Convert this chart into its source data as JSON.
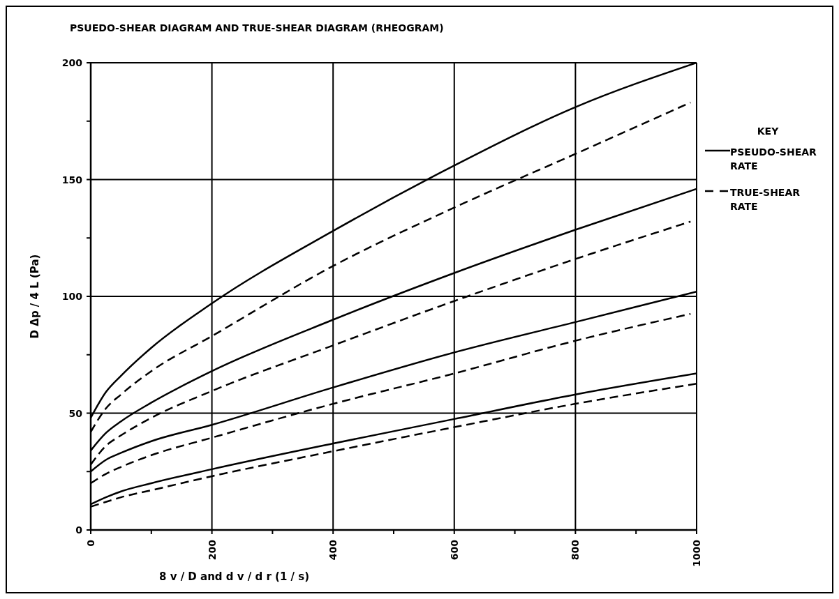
{
  "chart_data": {
    "type": "line",
    "title": "PSUEDO-SHEAR DIAGRAM AND TRUE-SHEAR DIAGRAM (RHEOGRAM)",
    "xlabel": "8 v / D  and  d v / d r  (1 / s)",
    "ylabel": "D Δp / 4 L  (Pa)",
    "legend_title": "KEY",
    "legend": "right",
    "grid": true,
    "marker": "none",
    "xlim": [
      0,
      1000
    ],
    "xticks": [
      0,
      {
        "value": 100,
        "label": null
      },
      200,
      {
        "value": 300,
        "label": null
      },
      400,
      {
        "value": 500,
        "label": null
      },
      600,
      {
        "value": 700,
        "label": null
      },
      800,
      {
        "value": 900,
        "label": null
      },
      1000
    ],
    "ylim": [
      0,
      200
    ],
    "yticks": [
      0,
      {
        "value": 25,
        "label": null
      },
      50,
      {
        "value": 75,
        "label": null
      },
      100,
      {
        "value": 125,
        "label": null
      },
      150,
      {
        "value": 175,
        "label": null
      },
      200
    ],
    "series": [
      {
        "name": "PSEUDO-SHEAR RATE",
        "color": "#000000",
        "line_style": "solid",
        "x": [
          0,
          25,
          50,
          100,
          200,
          400,
          600,
          800,
          1000
        ],
        "values": [
          48,
          59,
          66,
          78,
          97,
          128,
          156,
          181,
          200
        ]
      },
      {
        "color": "#000000",
        "line_style": "dashed",
        "x": [
          0,
          25,
          50,
          100,
          200,
          400,
          600,
          800,
          990
        ],
        "values": [
          42,
          52,
          58,
          68,
          83,
          113,
          138,
          161,
          183
        ]
      },
      {
        "color": "#000000",
        "line_style": "solid",
        "x": [
          0,
          25,
          50,
          100,
          200,
          400,
          600,
          800,
          1000
        ],
        "values": [
          34,
          41.5,
          46.5,
          54.5,
          68,
          90,
          110,
          128.5,
          146
        ]
      },
      {
        "color": "#000000",
        "line_style": "dashed",
        "x": [
          0,
          25,
          50,
          100,
          200,
          400,
          600,
          800,
          990
        ],
        "values": [
          28,
          36,
          40.5,
          48,
          59.5,
          79,
          98,
          116,
          132
        ]
      },
      {
        "color": "#000000",
        "line_style": "solid",
        "x": [
          0,
          25,
          50,
          100,
          200,
          400,
          600,
          800,
          1000
        ],
        "values": [
          25,
          30,
          33,
          38,
          45,
          61,
          76,
          89,
          102
        ]
      },
      {
        "color": "#000000",
        "line_style": "dashed",
        "x": [
          0,
          25,
          50,
          100,
          200,
          400,
          600,
          800,
          990
        ],
        "values": [
          20,
          24,
          27,
          32,
          39.5,
          54,
          67,
          81,
          92.5
        ]
      },
      {
        "color": "#000000",
        "line_style": "solid",
        "x": [
          0,
          25,
          50,
          100,
          200,
          400,
          600,
          800,
          1000
        ],
        "values": [
          11,
          14,
          16.5,
          20,
          26,
          37,
          47.5,
          58,
          67
        ]
      },
      {
        "name": "TRUE-SHEAR RATE",
        "color": "#000000",
        "line_style": "dashed",
        "x": [
          0,
          25,
          50,
          100,
          200,
          400,
          600,
          800,
          1000
        ],
        "values": [
          10,
          12,
          14,
          17,
          23,
          33.7,
          44,
          54,
          62.6
        ]
      }
    ]
  }
}
